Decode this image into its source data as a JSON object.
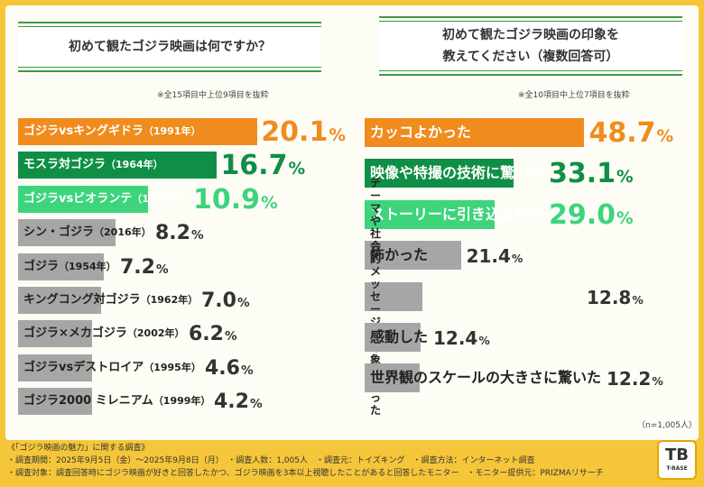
{
  "colors": {
    "background": "#f5c63a",
    "orange": "#f08c1e",
    "dark_green": "#0f8f45",
    "light_green": "#3dd47c",
    "gray": "#a6a6a6",
    "title_border": "#3c9b3c"
  },
  "left": {
    "title": "初めて観たゴジラ映画は何ですか？",
    "note": "※全15項目中上位9項目を抜粋"
  },
  "right": {
    "title_line1": "初めて観たゴジラ映画の印象を",
    "title_line2": "教えてください（複数回答可）",
    "note": "※全10項目中上位7項目を抜粋",
    "n_label": "（n=1,005人）"
  },
  "chart_data": [
    {
      "type": "bar",
      "title": "初めて観たゴジラ映画は何ですか？",
      "unit": "%",
      "categories": [
        "ゴジラvsキングギドラ（1991年）",
        "モスラ対ゴジラ（1964年）",
        "ゴジラvsビオランテ（1989年）",
        "シン・ゴジラ（2016年）",
        "ゴジラ（1954年）",
        "キングコング対ゴジラ（1962年）",
        "ゴジラ×メカゴジラ（2002年）",
        "ゴジラvsデストロイア（1995年）",
        "ゴジラ2000 ミレニアム（1999年）"
      ],
      "items": [
        {
          "name": "ゴジラvsキングギドラ",
          "year": "（1991年）",
          "value": 20.1,
          "color": "#f08c1e"
        },
        {
          "name": "モスラ対ゴジラ",
          "year": "（1964年）",
          "value": 16.7,
          "color": "#0f8f45"
        },
        {
          "name": "ゴジラvsビオランテ",
          "year": "（1989年）",
          "value": 10.9,
          "color": "#3dd47c"
        },
        {
          "name": "シン・ゴジラ",
          "year": "（2016年）",
          "value": 8.2,
          "color": "#a6a6a6"
        },
        {
          "name": "ゴジラ",
          "year": "（1954年）",
          "value": 7.2,
          "color": "#a6a6a6"
        },
        {
          "name": "キングコング対ゴジラ",
          "year": "（1962年）",
          "value": 7.0,
          "color": "#a6a6a6"
        },
        {
          "name": "ゴジラ×メカゴジラ",
          "year": "（2002年）",
          "value": 6.2,
          "color": "#a6a6a6"
        },
        {
          "name": "ゴジラvsデストロイア",
          "year": "（1995年）",
          "value": 4.6,
          "color": "#a6a6a6"
        },
        {
          "name": "ゴジラ2000 ミレニアム",
          "year": "（1999年）",
          "value": 4.2,
          "color": "#a6a6a6"
        }
      ]
    },
    {
      "type": "bar",
      "title": "初めて観たゴジラ映画の印象を教えてください（複数回答可）",
      "unit": "%",
      "categories": [
        "カッコよかった",
        "映像や特撮の技術に驚いた",
        "ストーリーに引き込まれた",
        "怖かった",
        "テーマや社会的メッセージが印象的だった",
        "感動した",
        "世界観のスケールの大きさに驚いた"
      ],
      "items": [
        {
          "name": "カッコよかった",
          "value": 48.7,
          "color": "#f08c1e"
        },
        {
          "name": "映像や特撮の技術に驚いた",
          "value": 33.1,
          "color": "#0f8f45"
        },
        {
          "name": "ストーリーに引き込まれた",
          "value": 29.0,
          "color": "#3dd47c"
        },
        {
          "name": "怖かった",
          "value": 21.4,
          "color": "#a6a6a6"
        },
        {
          "name": "テーマや社会的メッセージが印象的だった",
          "line1": "テーマや社会的メッセージが",
          "line2": "印象的だった",
          "value": 12.8,
          "color": "#a6a6a6"
        },
        {
          "name": "感動した",
          "value": 12.4,
          "color": "#a6a6a6"
        },
        {
          "name": "世界観のスケールの大きさに驚いた",
          "value": 12.2,
          "color": "#a6a6a6"
        }
      ]
    }
  ],
  "footer": {
    "line1": "《「ゴジラ映画の魅力」に関する調査》",
    "line2": "・調査期間：2025年9月5日（金）〜2025年9月8日（月）　・調査人数：1,005人　・調査元：トイズキング　・調査方法：インターネット調査",
    "line3": "・調査対象：調査回答時にゴジラ映画が好きと回答したかつ、ゴジラ映画を3本以上視聴したことがあると回答したモニター　・モニター提供元：PRIZMAリサーチ"
  },
  "logo": {
    "mark": "TB",
    "text": "T-BASE"
  }
}
